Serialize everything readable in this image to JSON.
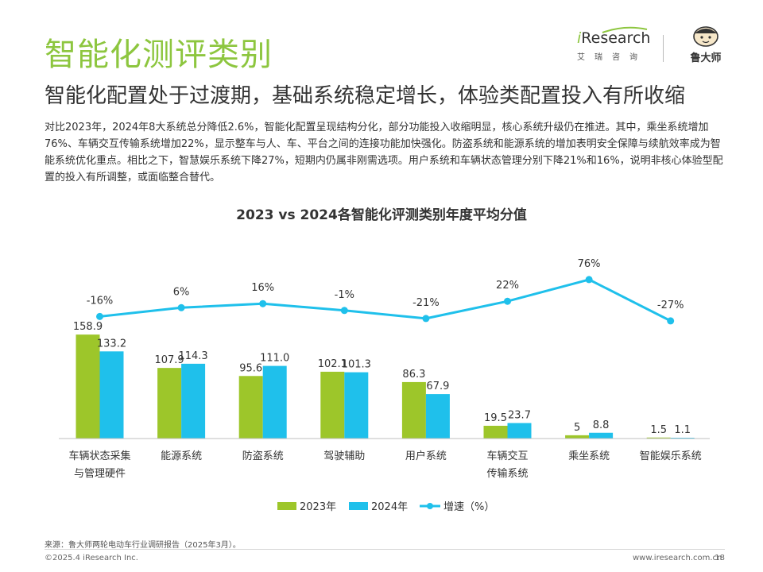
{
  "header": {
    "title": "智能化测评类别",
    "subtitle": "智能化配置处于过渡期，基础系统稳定增长，体验类配置投入有所收缩"
  },
  "body_text": "对比2023年，2024年8大系统总分降低2.6%，智能化配置呈现结构分化，部分功能投入收缩明显，核心系统升级仍在推进。其中，乘坐系统增加76%、车辆交互传输系统增加22%，显示整车与人、车、平台之间的连接功能加快强化。防盗系统和能源系统的增加表明安全保障与续航效率成为智能系统优化重点。相比之下，智慧娱乐系统下降27%，短期内仍属非刚需选项。用户系统和车辆状态管理分别下降21%和16%，说明非核心体验型配置的投入有所调整，或面临整合替代。",
  "logos": {
    "iresearch_i": "i",
    "iresearch_word": "Research",
    "iresearch_cn": "艾瑞咨询",
    "ludashi": "鲁大师"
  },
  "chart_data": {
    "type": "bar",
    "title": "2023 vs 2024各智能化评测类别年度平均分值",
    "categories": [
      [
        "车辆状态采集",
        "与管理硬件"
      ],
      [
        "能源系统"
      ],
      [
        "防盗系统"
      ],
      [
        "驾驶辅助"
      ],
      [
        "用户系统"
      ],
      [
        "车辆交互",
        "传输系统"
      ],
      [
        "乘坐系统"
      ],
      [
        "智能娱乐系统"
      ]
    ],
    "series": [
      {
        "name": "2023年",
        "kind": "bar",
        "color": "#9dc62a",
        "values": [
          158.9,
          107.9,
          95.6,
          102.1,
          86.3,
          19.5,
          5,
          1.5
        ],
        "labels": [
          "158.9",
          "107.9",
          "95.6",
          "102.1",
          "86.3",
          "19.5",
          "5",
          "1.5"
        ]
      },
      {
        "name": "2024年",
        "kind": "bar",
        "color": "#1fc0eb",
        "values": [
          133.2,
          114.3,
          111.0,
          101.3,
          67.9,
          23.7,
          8.8,
          1.1
        ],
        "labels": [
          "133.2",
          "114.3",
          "111.0",
          "101.3",
          "67.9",
          "23.7",
          "8.8",
          "1.1"
        ]
      },
      {
        "name": "增速（%）",
        "kind": "line",
        "color": "#1fc0eb",
        "values": [
          -16,
          6,
          16,
          -1,
          -21,
          22,
          76,
          -27
        ],
        "labels": [
          "-16%",
          "6%",
          "16%",
          "-1%",
          "-21%",
          "22%",
          "76%",
          "-27%"
        ]
      }
    ],
    "bar_ylim": [
      0,
      170
    ],
    "line_ylim": [
      -110,
      90
    ],
    "legend_position": "bottom-center",
    "grid": false
  },
  "footer": {
    "source": "来源：鲁大师两轮电动车行业调研报告（2025年3月）。",
    "copyright": "©2025.4 iResearch Inc.",
    "website": "www.iresearch.com.cn",
    "page": "18"
  }
}
